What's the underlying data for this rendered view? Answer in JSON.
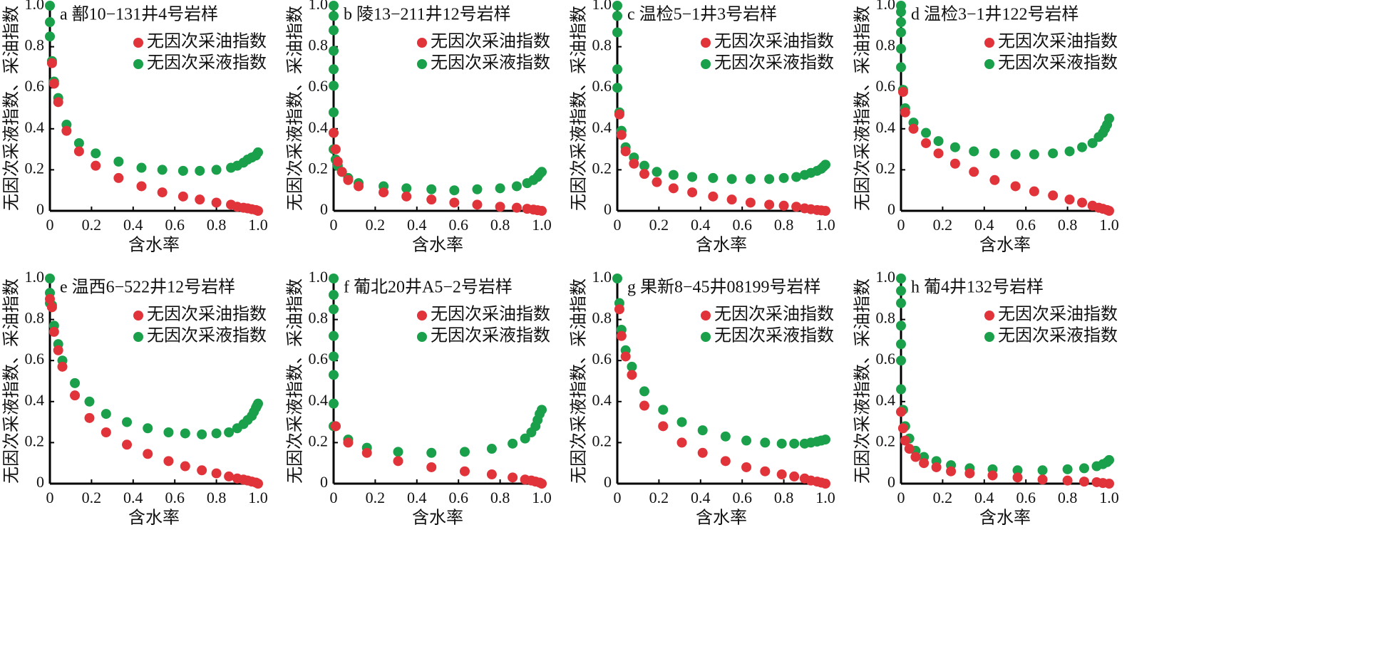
{
  "chart_data": [
    {
      "type": "scatter",
      "title": "a 鄯10−131井4号岩样",
      "xlabel": "含水率",
      "ylabel": "无因次采液指数、采油指数",
      "xlim": [
        0,
        1
      ],
      "ylim": [
        0,
        1
      ],
      "xticks": [
        0,
        0.2,
        0.4,
        0.6,
        0.8,
        {
          "value": 1,
          "label": "1.0"
        }
      ],
      "yticks": [
        0,
        0.2,
        0.4,
        0.6,
        0.8,
        {
          "value": 1,
          "label": "1.0"
        }
      ],
      "series": [
        {
          "name": "无因次采油指数",
          "color": "#e0343a",
          "x": [
            0.01,
            0.02,
            0.04,
            0.08,
            0.14,
            0.22,
            0.33,
            0.44,
            0.54,
            0.64,
            0.72,
            0.8,
            0.87,
            0.9,
            0.93,
            0.95,
            0.97,
            0.99,
            1.0
          ],
          "values": [
            0.72,
            0.62,
            0.53,
            0.39,
            0.29,
            0.22,
            0.16,
            0.12,
            0.09,
            0.07,
            0.055,
            0.04,
            0.03,
            0.02,
            0.015,
            0.012,
            0.008,
            0.004,
            0
          ]
        },
        {
          "name": "无因次采液指数",
          "color": "#1aa04a",
          "x": [
            0,
            0,
            0,
            0.01,
            0.02,
            0.04,
            0.08,
            0.14,
            0.22,
            0.33,
            0.44,
            0.54,
            0.64,
            0.72,
            0.8,
            0.87,
            0.9,
            0.93,
            0.95,
            0.97,
            0.99,
            1.0
          ],
          "values": [
            1.0,
            0.92,
            0.85,
            0.73,
            0.63,
            0.55,
            0.42,
            0.33,
            0.28,
            0.24,
            0.21,
            0.2,
            0.195,
            0.195,
            0.2,
            0.21,
            0.22,
            0.235,
            0.25,
            0.26,
            0.27,
            0.285
          ]
        }
      ]
    },
    {
      "type": "scatter",
      "title": "b 陵13−211井12号岩样",
      "xlabel": "含水率",
      "ylabel": "无因次采液指数、采油指数",
      "xlim": [
        0,
        1
      ],
      "ylim": [
        0,
        1
      ],
      "xticks": [
        0,
        0.2,
        0.4,
        0.6,
        0.8,
        {
          "value": 1,
          "label": "1.0"
        }
      ],
      "yticks": [
        0,
        0.2,
        0.4,
        0.6,
        0.8,
        {
          "value": 1,
          "label": "1.0"
        }
      ],
      "series": [
        {
          "name": "无因次采油指数",
          "color": "#e0343a",
          "x": [
            0.0,
            0.01,
            0.02,
            0.04,
            0.07,
            0.12,
            0.24,
            0.35,
            0.47,
            0.58,
            0.69,
            0.8,
            0.88,
            0.93,
            0.96,
            0.98,
            1.0
          ],
          "values": [
            0.38,
            0.3,
            0.24,
            0.19,
            0.15,
            0.12,
            0.09,
            0.07,
            0.055,
            0.04,
            0.03,
            0.02,
            0.015,
            0.01,
            0.006,
            0.003,
            0
          ]
        },
        {
          "name": "无因次采液指数",
          "color": "#1aa04a",
          "x": [
            0,
            0,
            0,
            0,
            0,
            0,
            0,
            0,
            0,
            0.01,
            0.02,
            0.04,
            0.07,
            0.12,
            0.24,
            0.35,
            0.47,
            0.58,
            0.69,
            0.8,
            0.88,
            0.93,
            0.96,
            0.98,
            0.99,
            1.0
          ],
          "values": [
            1.0,
            0.95,
            0.88,
            0.78,
            0.69,
            0.61,
            0.48,
            0.38,
            0.3,
            0.25,
            0.22,
            0.19,
            0.16,
            0.135,
            0.12,
            0.11,
            0.105,
            0.1,
            0.105,
            0.11,
            0.12,
            0.135,
            0.15,
            0.165,
            0.18,
            0.19
          ]
        }
      ]
    },
    {
      "type": "scatter",
      "title": "c 温检5−1井3号岩样",
      "xlabel": "含水率",
      "ylabel": "无因次采液指数、采油指数",
      "xlim": [
        0,
        1
      ],
      "ylim": [
        0,
        1
      ],
      "xticks": [
        0,
        0.2,
        0.4,
        0.6,
        0.8,
        {
          "value": 1,
          "label": "1.0"
        }
      ],
      "yticks": [
        0,
        0.2,
        0.4,
        0.6,
        0.8,
        {
          "value": 1,
          "label": "1.0"
        }
      ],
      "series": [
        {
          "name": "无因次采油指数",
          "color": "#e0343a",
          "x": [
            0.01,
            0.02,
            0.04,
            0.08,
            0.13,
            0.19,
            0.27,
            0.36,
            0.46,
            0.55,
            0.64,
            0.73,
            0.8,
            0.86,
            0.9,
            0.93,
            0.96,
            0.98,
            1.0
          ],
          "values": [
            0.47,
            0.37,
            0.29,
            0.23,
            0.18,
            0.14,
            0.11,
            0.09,
            0.07,
            0.055,
            0.04,
            0.03,
            0.025,
            0.02,
            0.012,
            0.008,
            0.004,
            0.002,
            0
          ]
        },
        {
          "name": "无因次采液指数",
          "color": "#1aa04a",
          "x": [
            0,
            0,
            0,
            0,
            0,
            0.01,
            0.02,
            0.04,
            0.08,
            0.13,
            0.19,
            0.27,
            0.36,
            0.46,
            0.55,
            0.64,
            0.73,
            0.8,
            0.86,
            0.9,
            0.93,
            0.96,
            0.98,
            0.99,
            1.0
          ],
          "values": [
            1.0,
            0.95,
            0.87,
            0.69,
            0.6,
            0.48,
            0.39,
            0.31,
            0.26,
            0.22,
            0.19,
            0.175,
            0.165,
            0.16,
            0.155,
            0.155,
            0.155,
            0.16,
            0.165,
            0.175,
            0.185,
            0.195,
            0.205,
            0.215,
            0.225
          ]
        }
      ]
    },
    {
      "type": "scatter",
      "title": "d 温检3−1井122号岩样",
      "xlabel": "含水率",
      "ylabel": "无因次采液指数、采油指数",
      "xlim": [
        0,
        1
      ],
      "ylim": [
        0,
        1
      ],
      "xticks": [
        0,
        0.2,
        0.4,
        0.6,
        0.8,
        {
          "value": 1,
          "label": "1.0"
        }
      ],
      "yticks": [
        0,
        0.2,
        0.4,
        0.6,
        0.8,
        {
          "value": 1,
          "label": "1.0"
        }
      ],
      "series": [
        {
          "name": "无因次采油指数",
          "color": "#e0343a",
          "x": [
            0.01,
            0.02,
            0.06,
            0.12,
            0.18,
            0.26,
            0.35,
            0.45,
            0.55,
            0.64,
            0.73,
            0.81,
            0.87,
            0.92,
            0.95,
            0.97,
            0.99,
            1.0
          ],
          "values": [
            0.58,
            0.48,
            0.4,
            0.33,
            0.28,
            0.23,
            0.19,
            0.15,
            0.12,
            0.095,
            0.075,
            0.055,
            0.04,
            0.025,
            0.015,
            0.01,
            0.004,
            0
          ]
        },
        {
          "name": "无因次采液指数",
          "color": "#1aa04a",
          "x": [
            0,
            0,
            0,
            0,
            0,
            0,
            0.01,
            0.02,
            0.06,
            0.12,
            0.18,
            0.26,
            0.35,
            0.45,
            0.55,
            0.64,
            0.73,
            0.81,
            0.87,
            0.92,
            0.95,
            0.97,
            0.98,
            0.99,
            1.0
          ],
          "values": [
            1.0,
            0.97,
            0.92,
            0.87,
            0.79,
            0.7,
            0.59,
            0.5,
            0.43,
            0.38,
            0.34,
            0.31,
            0.29,
            0.28,
            0.275,
            0.275,
            0.28,
            0.29,
            0.31,
            0.33,
            0.36,
            0.38,
            0.4,
            0.42,
            0.45
          ]
        }
      ]
    },
    {
      "type": "scatter",
      "title": "e 温西6−522井12号岩样",
      "xlabel": "含水率",
      "ylabel": "无因次采液指数、采油指数",
      "xlim": [
        0,
        1
      ],
      "ylim": [
        0,
        1
      ],
      "xticks": [
        0,
        0.2,
        0.4,
        0.6,
        0.8,
        {
          "value": 1,
          "label": "1.0"
        }
      ],
      "yticks": [
        0,
        0.2,
        0.4,
        0.6,
        0.8,
        {
          "value": 1,
          "label": "1.0"
        }
      ],
      "series": [
        {
          "name": "无因次采油指数",
          "color": "#e0343a",
          "x": [
            0,
            0.01,
            0.02,
            0.04,
            0.06,
            0.12,
            0.19,
            0.27,
            0.37,
            0.47,
            0.57,
            0.65,
            0.73,
            0.8,
            0.86,
            0.9,
            0.93,
            0.95,
            0.97,
            0.99,
            1.0
          ],
          "values": [
            0.9,
            0.86,
            0.74,
            0.65,
            0.57,
            0.43,
            0.32,
            0.25,
            0.19,
            0.145,
            0.11,
            0.085,
            0.065,
            0.05,
            0.035,
            0.025,
            0.02,
            0.015,
            0.01,
            0.005,
            0
          ]
        },
        {
          "name": "无因次采液指数",
          "color": "#1aa04a",
          "x": [
            0,
            0,
            0,
            0.01,
            0.02,
            0.04,
            0.06,
            0.12,
            0.19,
            0.27,
            0.37,
            0.47,
            0.57,
            0.65,
            0.73,
            0.8,
            0.86,
            0.9,
            0.93,
            0.95,
            0.97,
            0.98,
            0.99,
            0.995,
            1.0
          ],
          "values": [
            1.0,
            0.93,
            0.88,
            0.87,
            0.77,
            0.68,
            0.6,
            0.49,
            0.4,
            0.34,
            0.3,
            0.27,
            0.25,
            0.245,
            0.24,
            0.245,
            0.25,
            0.27,
            0.29,
            0.31,
            0.33,
            0.35,
            0.37,
            0.38,
            0.39
          ]
        }
      ]
    },
    {
      "type": "scatter",
      "title": "f 葡北20井A5−2号岩样",
      "xlabel": "含水率",
      "ylabel": "无因次采液指数、采油指数",
      "xlim": [
        0,
        1
      ],
      "ylim": [
        0,
        1
      ],
      "xticks": [
        0,
        0.2,
        0.4,
        0.6,
        0.8,
        {
          "value": 1,
          "label": "1.0"
        }
      ],
      "yticks": [
        0,
        0.2,
        0.4,
        0.6,
        0.8,
        {
          "value": 1,
          "label": "1.0"
        }
      ],
      "series": [
        {
          "name": "无因次采油指数",
          "color": "#e0343a",
          "x": [
            0.01,
            0.07,
            0.16,
            0.31,
            0.47,
            0.63,
            0.76,
            0.86,
            0.92,
            0.95,
            0.97,
            0.99,
            1.0
          ],
          "values": [
            0.28,
            0.2,
            0.15,
            0.11,
            0.08,
            0.06,
            0.045,
            0.03,
            0.02,
            0.015,
            0.01,
            0.005,
            0
          ]
        },
        {
          "name": "无因次采液指数",
          "color": "#1aa04a",
          "x": [
            0,
            0,
            0,
            0,
            0,
            0,
            0,
            0,
            0.01,
            0.07,
            0.16,
            0.31,
            0.47,
            0.63,
            0.76,
            0.86,
            0.92,
            0.95,
            0.97,
            0.98,
            0.99,
            1.0
          ],
          "values": [
            1.0,
            0.92,
            0.85,
            0.72,
            0.62,
            0.53,
            0.39,
            0.28,
            0.28,
            0.215,
            0.175,
            0.155,
            0.15,
            0.155,
            0.17,
            0.195,
            0.22,
            0.25,
            0.28,
            0.31,
            0.34,
            0.36
          ]
        }
      ]
    },
    {
      "type": "scatter",
      "title": "g 果新8−45井08199号岩样",
      "xlabel": "含水率",
      "ylabel": "无因次采液指数、采油指数",
      "xlim": [
        0,
        1
      ],
      "ylim": [
        0,
        1
      ],
      "xticks": [
        0,
        0.2,
        0.4,
        0.6,
        0.8,
        {
          "value": 1,
          "label": "1.0"
        }
      ],
      "yticks": [
        0,
        0.2,
        0.4,
        0.6,
        0.8,
        {
          "value": 1,
          "label": "1.0"
        }
      ],
      "series": [
        {
          "name": "无因次采油指数",
          "color": "#e0343a",
          "x": [
            0.01,
            0.02,
            0.04,
            0.07,
            0.13,
            0.22,
            0.31,
            0.41,
            0.52,
            0.62,
            0.71,
            0.79,
            0.85,
            0.9,
            0.93,
            0.96,
            0.98,
            1.0
          ],
          "values": [
            0.85,
            0.72,
            0.62,
            0.53,
            0.38,
            0.28,
            0.2,
            0.15,
            0.11,
            0.08,
            0.06,
            0.045,
            0.035,
            0.025,
            0.015,
            0.01,
            0.005,
            0
          ]
        },
        {
          "name": "无因次采液指数",
          "color": "#1aa04a",
          "x": [
            0,
            0.01,
            0.02,
            0.04,
            0.07,
            0.13,
            0.22,
            0.31,
            0.41,
            0.52,
            0.62,
            0.71,
            0.79,
            0.85,
            0.9,
            0.93,
            0.96,
            0.98,
            1.0
          ],
          "values": [
            1.0,
            0.88,
            0.75,
            0.65,
            0.57,
            0.45,
            0.36,
            0.3,
            0.26,
            0.23,
            0.21,
            0.2,
            0.195,
            0.195,
            0.195,
            0.2,
            0.205,
            0.21,
            0.215
          ]
        }
      ]
    },
    {
      "type": "scatter",
      "title": "h 葡4井132号岩样",
      "xlabel": "含水率",
      "ylabel": "无因次采液指数、采油指数",
      "xlim": [
        0,
        1
      ],
      "ylim": [
        0,
        1
      ],
      "xticks": [
        0,
        0.2,
        0.4,
        0.6,
        0.8,
        {
          "value": 1,
          "label": "1.0"
        }
      ],
      "yticks": [
        0,
        0.2,
        0.4,
        0.6,
        0.8,
        {
          "value": 1,
          "label": "1.0"
        }
      ],
      "series": [
        {
          "name": "无因次采油指数",
          "color": "#e0343a",
          "x": [
            0,
            0.01,
            0.02,
            0.04,
            0.07,
            0.11,
            0.17,
            0.24,
            0.33,
            0.44,
            0.56,
            0.68,
            0.8,
            0.88,
            0.94,
            0.97,
            1.0
          ],
          "values": [
            0.35,
            0.27,
            0.21,
            0.17,
            0.13,
            0.1,
            0.08,
            0.06,
            0.05,
            0.04,
            0.03,
            0.02,
            0.015,
            0.01,
            0.007,
            0.003,
            0
          ]
        },
        {
          "name": "无因次采液指数",
          "color": "#1aa04a",
          "x": [
            0,
            0,
            0,
            0,
            0,
            0,
            0,
            0.01,
            0.02,
            0.04,
            0.07,
            0.11,
            0.17,
            0.24,
            0.33,
            0.44,
            0.56,
            0.68,
            0.8,
            0.88,
            0.94,
            0.97,
            0.99,
            1.0
          ],
          "values": [
            1.0,
            0.94,
            0.88,
            0.77,
            0.68,
            0.6,
            0.46,
            0.36,
            0.28,
            0.22,
            0.16,
            0.13,
            0.11,
            0.09,
            0.075,
            0.07,
            0.065,
            0.065,
            0.07,
            0.075,
            0.085,
            0.095,
            0.105,
            0.115
          ]
        }
      ]
    }
  ]
}
